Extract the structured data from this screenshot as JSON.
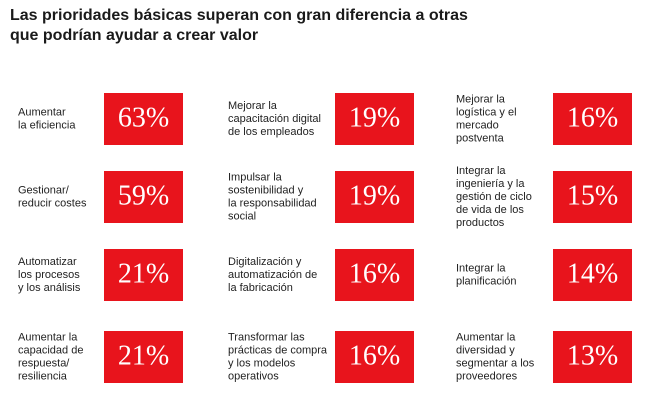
{
  "title": [
    "Las prioridades básicas superan con gran diferencia a otras",
    "que podrían ayudar a crear valor"
  ],
  "columns": [
    {
      "items": [
        {
          "label": [
            "Aumentar",
            "la eficiencia"
          ],
          "value": "63%"
        },
        {
          "label": [
            "Gestionar/",
            "reducir costes"
          ],
          "value": "59%"
        },
        {
          "label": [
            "Automatizar",
            "los procesos",
            "y los análisis"
          ],
          "value": "21%"
        },
        {
          "label": [
            "Aumentar la",
            "capacidad de",
            "respuesta/",
            "resiliencia"
          ],
          "value": "21%"
        }
      ]
    },
    {
      "items": [
        {
          "label": [
            "Mejorar la",
            "capacitación digital",
            "de los empleados"
          ],
          "value": "19%"
        },
        {
          "label": [
            "Impulsar la",
            "sostenibilidad y",
            "la responsabilidad",
            "social"
          ],
          "value": "19%"
        },
        {
          "label": [
            "Digitalización y",
            "automatización de",
            "la fabricación"
          ],
          "value": "16%"
        },
        {
          "label": [
            "Transformar las",
            "prácticas de compra",
            "y los modelos",
            "operativos"
          ],
          "value": "16%"
        }
      ]
    },
    {
      "items": [
        {
          "label": [
            "Mejorar la",
            "logística y el",
            "mercado",
            "postventa"
          ],
          "value": "16%"
        },
        {
          "label": [
            "Integrar la",
            "ingeniería y la",
            "gestión de ciclo",
            "de vida de los",
            "productos"
          ],
          "value": "15%"
        },
        {
          "label": [
            "Integrar la",
            "planificación"
          ],
          "value": "14%"
        },
        {
          "label": [
            "Aumentar la",
            "diversidad y",
            "segmentar a los",
            "proveedores"
          ],
          "value": "13%"
        }
      ]
    }
  ]
}
